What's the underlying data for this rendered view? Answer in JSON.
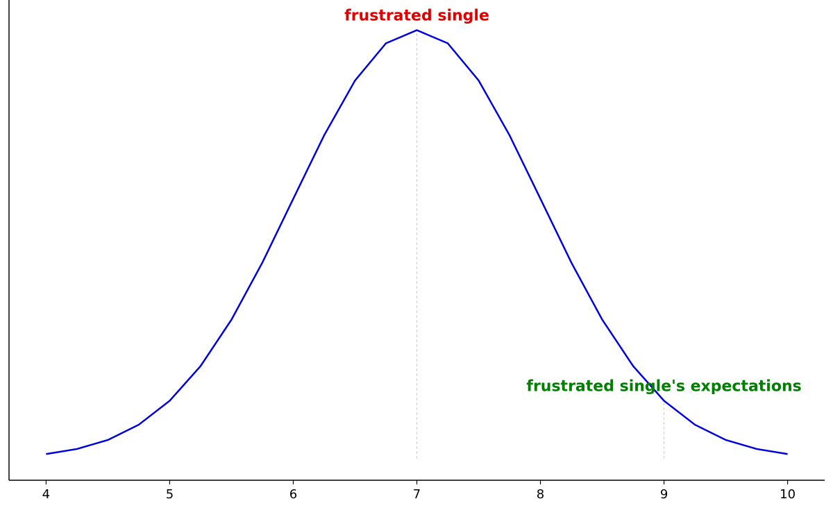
{
  "chart_data": {
    "type": "line",
    "x": [
      4,
      4.25,
      4.5,
      4.75,
      5,
      5.25,
      5.5,
      5.75,
      6,
      6.25,
      6.5,
      6.75,
      7,
      7.25,
      7.5,
      7.75,
      8,
      8.25,
      8.5,
      8.75,
      9,
      9.25,
      9.5,
      9.75,
      10
    ],
    "values": [
      0.0044,
      0.0091,
      0.0175,
      0.0317,
      0.054,
      0.0863,
      0.1295,
      0.1826,
      0.242,
      0.3011,
      0.3521,
      0.3867,
      0.3989,
      0.3867,
      0.3521,
      0.3011,
      0.242,
      0.1826,
      0.1295,
      0.0863,
      0.054,
      0.0317,
      0.0175,
      0.0091,
      0.0044
    ],
    "color": "#0000dd",
    "xlim": [
      3.7,
      10.3
    ],
    "xticks": [
      4,
      5,
      6,
      7,
      8,
      9,
      10
    ],
    "ylim": [
      -0.02,
      0.427
    ],
    "annotations": [
      {
        "x": 7,
        "y": 0.3989,
        "label": "frustrated single",
        "color": "#e00000"
      },
      {
        "x": 9,
        "y": 0.054,
        "label": "frustrated single's expectations",
        "color": "#008000"
      }
    ]
  }
}
